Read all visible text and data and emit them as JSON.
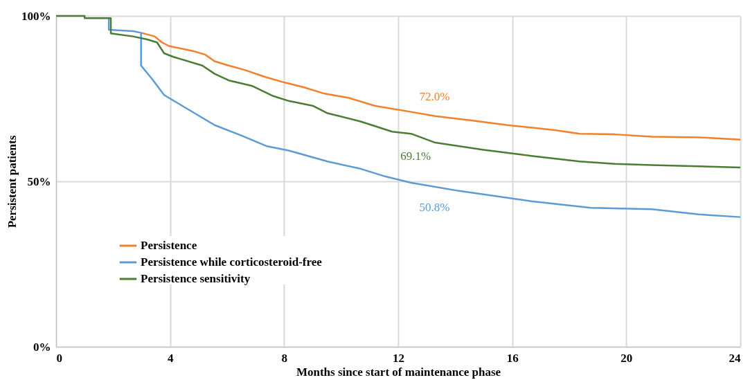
{
  "chart_data": {
    "type": "line",
    "xlabel": "Months since start of maintenance phase",
    "ylabel": "Persistent patients",
    "xlim": [
      0,
      24
    ],
    "xticks": [
      0,
      4,
      8,
      12,
      16,
      20,
      24
    ],
    "ylim": [
      0,
      100
    ],
    "yticks": [
      {
        "value": 0,
        "label": "0%"
      },
      {
        "value": 50,
        "label": "50%"
      },
      {
        "value": 100,
        "label": "100%"
      }
    ],
    "grid": true,
    "legend": "bottom left",
    "line_style": "solid",
    "series": [
      {
        "name": "Persistence",
        "color": "#f47f2a",
        "x": [
          2.98,
          3.46,
          3.71,
          3.96,
          4.8,
          5.23,
          5.56,
          6.06,
          6.64,
          7.32,
          8.0,
          8.66,
          9.42,
          10.28,
          11.19,
          12.45,
          13.3,
          14.57,
          15.83,
          17.5,
          18.36,
          19.6,
          20.9,
          22.55,
          24
        ],
        "values": [
          94.9,
          93.8,
          92.0,
          90.9,
          89.4,
          88.3,
          86.3,
          85.0,
          83.6,
          81.6,
          79.9,
          78.5,
          76.5,
          75.2,
          72.8,
          71.0,
          69.7,
          68.4,
          67.0,
          65.5,
          64.4,
          64.2,
          63.5,
          63.3,
          62.6
        ]
      },
      {
        "name": "Persistence while corticosteroid-free",
        "color": "#5b9bd5",
        "x": [
          1.85,
          1.85,
          2.7,
          2.98,
          2.98,
          3.36,
          3.79,
          4.47,
          5.56,
          6.49,
          7.4,
          8.16,
          9.52,
          10.68,
          11.54,
          12.45,
          14.14,
          16.67,
          18.76,
          20.9,
          22.55,
          24
        ],
        "values": [
          99.3,
          95.8,
          95.4,
          94.9,
          85.0,
          81.0,
          76.1,
          72.6,
          67.0,
          63.9,
          60.6,
          59.3,
          56.0,
          53.8,
          51.5,
          49.6,
          47.1,
          44.0,
          42.0,
          41.6,
          40.0,
          39.2
        ]
      },
      {
        "name": "Persistence sensitivity",
        "color": "#4a7d32",
        "x": [
          0,
          1,
          1,
          1.92,
          1.92,
          2.7,
          3.2,
          3.54,
          3.79,
          4.12,
          5.13,
          5.56,
          6.06,
          6.89,
          7.58,
          8.16,
          9.02,
          9.52,
          10.68,
          11.79,
          12.45,
          13.3,
          15.0,
          16.67,
          18.36,
          19.6,
          20.9,
          24
        ],
        "values": [
          100,
          100,
          99.3,
          99.3,
          94.7,
          93.8,
          92.9,
          92.0,
          88.7,
          87.6,
          85.0,
          82.5,
          80.5,
          78.8,
          75.9,
          74.3,
          72.8,
          70.6,
          68.1,
          65.0,
          64.4,
          61.7,
          59.5,
          57.7,
          56.0,
          55.3,
          54.9,
          54.2
        ]
      }
    ],
    "annotations": [
      "72.0%",
      "50.8%",
      "69.1%"
    ]
  }
}
